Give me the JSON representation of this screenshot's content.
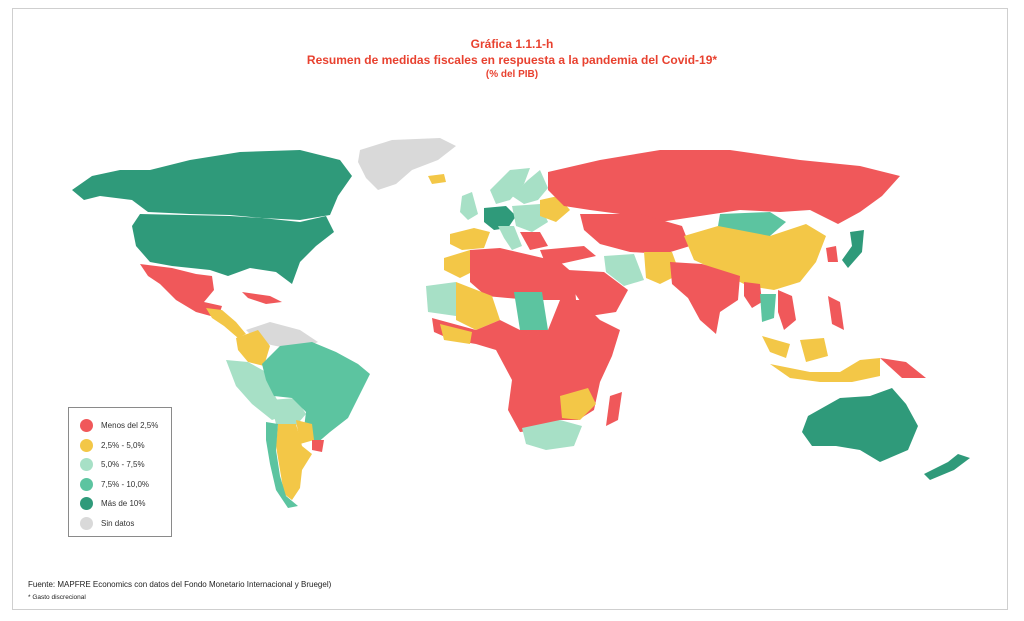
{
  "header": {
    "figure_number": "Gráfica 1.1.1-h",
    "title": "Resumen de medidas fiscales en respuesta a la pandemia del Covid-19*",
    "unit": "(% del PIB)"
  },
  "legend": {
    "items": [
      {
        "label": "Menos del 2,5%",
        "color": "#f0585a"
      },
      {
        "label": "2,5% - 5,0%",
        "color": "#f3c747"
      },
      {
        "label": "5,0% - 7,5%",
        "color": "#a7e0c6"
      },
      {
        "label": "7,5% - 10,0%",
        "color": "#5cc4a0"
      },
      {
        "label": "Más de 10%",
        "color": "#2f9a7a"
      },
      {
        "label": "Sin datos",
        "color": "#d9d9d9"
      }
    ]
  },
  "footer": {
    "source": "Fuente: MAPFRE Economics con datos del Fondo Monetario Internacional y Bruegel)",
    "note": "* Gasto discrecional"
  }
}
